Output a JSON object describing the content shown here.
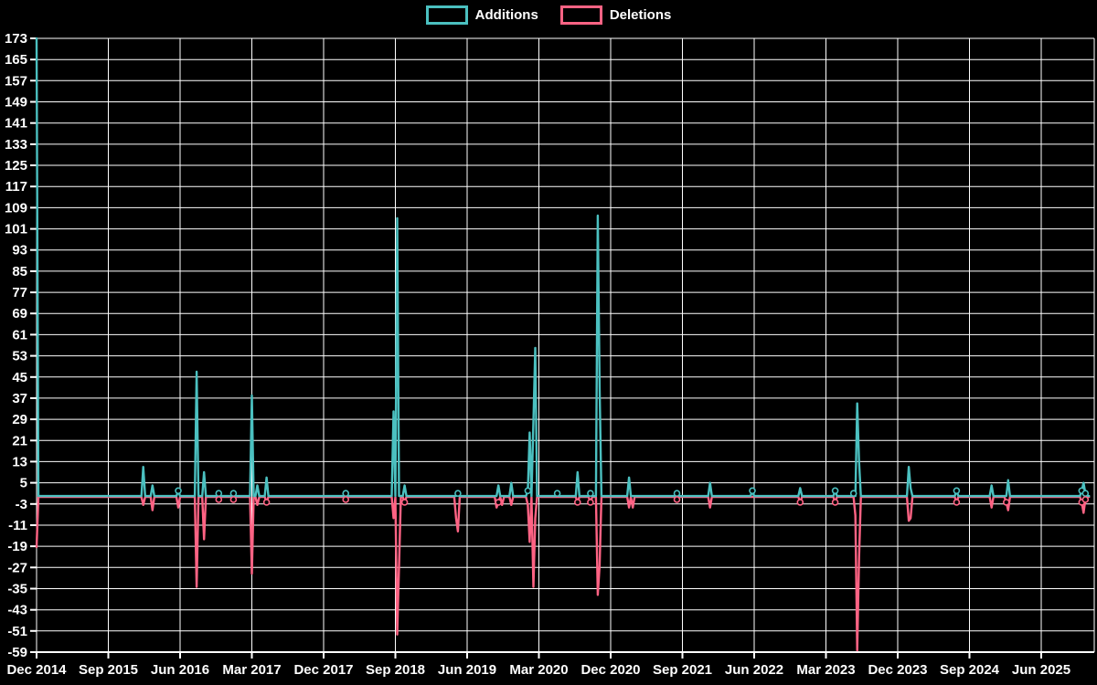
{
  "colors": {
    "background": "#000000",
    "grid": "#ffffff",
    "text": "#ffffff",
    "additions": "#4bc0c0",
    "deletions": "#ff6384"
  },
  "legend": {
    "items": [
      {
        "label": "Additions",
        "color": "#4bc0c0"
      },
      {
        "label": "Deletions",
        "color": "#ff6384"
      }
    ]
  },
  "chart_data": {
    "type": "line",
    "title": "",
    "xlabel": "",
    "ylabel": "",
    "legend_entries": [
      "Additions",
      "Deletions"
    ],
    "legend_position": "top-center",
    "grid": true,
    "y_axis": {
      "min": -59,
      "max": 173,
      "tick_step": 8,
      "tick_labels": [
        173,
        165,
        157,
        149,
        141,
        133,
        125,
        117,
        109,
        101,
        93,
        85,
        77,
        69,
        61,
        53,
        45,
        37,
        29,
        21,
        13,
        5,
        -3,
        -11,
        -19,
        -27,
        -35,
        -43,
        -51,
        -59
      ]
    },
    "x_axis": {
      "tick_labels": [
        "Dec 2014",
        "Sep 2015",
        "Jun 2016",
        "Mar 2017",
        "Dec 2017",
        "Sep 2018",
        "Jun 2019",
        "Mar 2020",
        "Dec 2020",
        "Sep 2021",
        "Jun 2022",
        "Mar 2023",
        "Dec 2023",
        "Sep 2024",
        "Jun 2025"
      ],
      "weeks_per_label": 39,
      "total_weeks": 573
    },
    "baseline_value": 0,
    "series_note": "weekly additions (positive) and deletions (negative); all unlisted weeks are 0",
    "events": [
      {
        "week": 0,
        "date": "Dec 2014",
        "additions": 173,
        "deletions": -19
      },
      {
        "week": 58,
        "date": "Jan 2016",
        "additions": 11,
        "deletions": -3
      },
      {
        "week": 63,
        "date": "Feb 2016",
        "additions": 4,
        "deletions": -5
      },
      {
        "week": 77,
        "date": "May 2016",
        "additions": 2,
        "deletions": -4
      },
      {
        "week": 87,
        "date": "Aug 2016",
        "additions": 47,
        "deletions": -34
      },
      {
        "week": 91,
        "date": "Sep 2016",
        "additions": 9,
        "deletions": -16
      },
      {
        "week": 99,
        "date": "Nov 2016",
        "additions": 1,
        "deletions": -1
      },
      {
        "week": 107,
        "date": "Jan 2017",
        "additions": 1,
        "deletions": -1
      },
      {
        "week": 117,
        "date": "Mar 2017",
        "additions": 38,
        "deletions": -29
      },
      {
        "week": 120,
        "date": "Apr 2017",
        "additions": 4,
        "deletions": -3
      },
      {
        "week": 125,
        "date": "May 2017",
        "additions": 7,
        "deletions": -2
      },
      {
        "week": 168,
        "date": "Mar 2018",
        "additions": 1,
        "deletions": -1
      },
      {
        "week": 194,
        "date": "Aug 2018",
        "additions": 32,
        "deletions": -8
      },
      {
        "week": 196,
        "date": "Sep 2018",
        "additions": 105,
        "deletions": -52
      },
      {
        "week": 197,
        "date": "Sep 2018",
        "additions": 0,
        "deletions": -26
      },
      {
        "week": 200,
        "date": "Oct 2018",
        "additions": 4,
        "deletions": -2
      },
      {
        "week": 228,
        "date": "Apr 2019",
        "additions": 0,
        "deletions": -8
      },
      {
        "week": 229,
        "date": "May 2019",
        "additions": 1,
        "deletions": -13
      },
      {
        "week": 250,
        "date": "Sep 2019",
        "additions": 0,
        "deletions": -4
      },
      {
        "week": 251,
        "date": "Oct 2019",
        "additions": 4,
        "deletions": -2
      },
      {
        "week": 253,
        "date": "Oct 2019",
        "additions": 0,
        "deletions": -3
      },
      {
        "week": 258,
        "date": "Nov 2019",
        "additions": 5,
        "deletions": -3
      },
      {
        "week": 267,
        "date": "Jan 2020",
        "additions": 2,
        "deletions": -3
      },
      {
        "week": 268,
        "date": "Feb 2020",
        "additions": 24,
        "deletions": -17
      },
      {
        "week": 270,
        "date": "Feb 2020",
        "additions": 28,
        "deletions": -34
      },
      {
        "week": 271,
        "date": "Mar 2020",
        "additions": 56,
        "deletions": -8
      },
      {
        "week": 283,
        "date": "May 2020",
        "additions": 1,
        "deletions": 0
      },
      {
        "week": 294,
        "date": "Jul 2020",
        "additions": 9,
        "deletions": -2
      },
      {
        "week": 301,
        "date": "Sep 2020",
        "additions": 1,
        "deletions": -2
      },
      {
        "week": 305,
        "date": "Oct 2020",
        "additions": 106,
        "deletions": -37
      },
      {
        "week": 306,
        "date": "Nov 2020",
        "additions": 41,
        "deletions": -26
      },
      {
        "week": 322,
        "date": "Feb 2021",
        "additions": 7,
        "deletions": -4
      },
      {
        "week": 324,
        "date": "Mar 2021",
        "additions": 0,
        "deletions": -4
      },
      {
        "week": 348,
        "date": "Aug 2021",
        "additions": 1,
        "deletions": -1
      },
      {
        "week": 366,
        "date": "Dec 2021",
        "additions": 5,
        "deletions": -4
      },
      {
        "week": 389,
        "date": "May 2022",
        "additions": 2,
        "deletions": 0
      },
      {
        "week": 415,
        "date": "Nov 2022",
        "additions": 3,
        "deletions": -2
      },
      {
        "week": 434,
        "date": "Apr 2023",
        "additions": 2,
        "deletions": -2
      },
      {
        "week": 444,
        "date": "Jun 2023",
        "additions": 1,
        "deletions": 0
      },
      {
        "week": 445,
        "date": "Jun 2023",
        "additions": 0,
        "deletions": -7
      },
      {
        "week": 446,
        "date": "Jul 2023",
        "additions": 35,
        "deletions": -58
      },
      {
        "week": 447,
        "date": "Jul 2023",
        "additions": 13,
        "deletions": -23
      },
      {
        "week": 474,
        "date": "Jan 2024",
        "additions": 11,
        "deletions": -9
      },
      {
        "week": 475,
        "date": "Jan 2024",
        "additions": 3,
        "deletions": -8
      },
      {
        "week": 500,
        "date": "Jul 2024",
        "additions": 2,
        "deletions": -2
      },
      {
        "week": 519,
        "date": "Nov 2024",
        "additions": 4,
        "deletions": -4
      },
      {
        "week": 527,
        "date": "Jan 2025",
        "additions": 0,
        "deletions": -2
      },
      {
        "week": 528,
        "date": "Jan 2025",
        "additions": 6,
        "deletions": -5
      },
      {
        "week": 568,
        "date": "Oct 2025",
        "additions": 2,
        "deletions": -2
      },
      {
        "week": 569,
        "date": "Nov 2025",
        "additions": 5,
        "deletions": -6
      },
      {
        "week": 570,
        "date": "Nov 2025",
        "additions": 1,
        "deletions": -1
      }
    ]
  }
}
